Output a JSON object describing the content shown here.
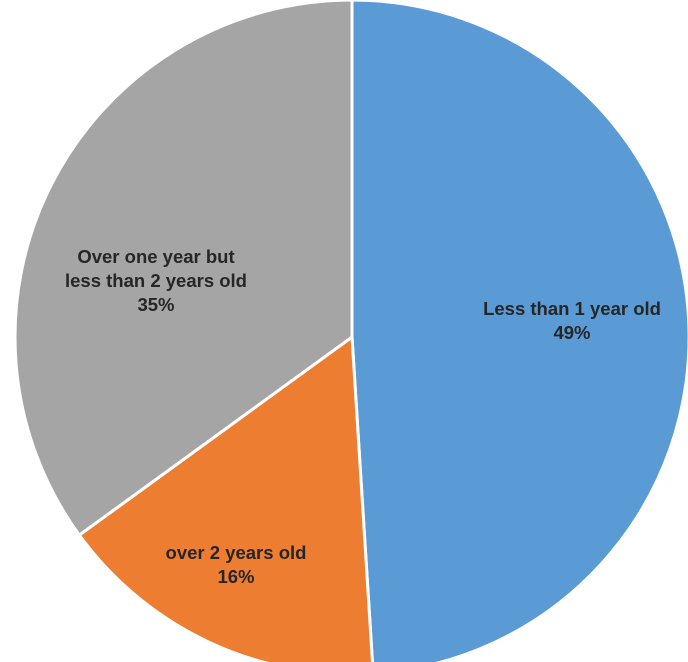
{
  "chart_data": {
    "type": "pie",
    "title": "",
    "start_angle_deg": 0,
    "direction": "clockwise",
    "legend": "none",
    "slices": [
      {
        "name": "less-than-1-year",
        "label_lines": [
          "Less than 1 year old"
        ],
        "value": 49,
        "value_label": "49%",
        "color": "#5B9BD5"
      },
      {
        "name": "over-2-years",
        "label_lines": [
          "over 2 years old"
        ],
        "value": 16,
        "value_label": "16%",
        "color": "#ED7D31"
      },
      {
        "name": "one-to-2-years",
        "label_lines": [
          "Over one year but",
          "less than 2 years old"
        ],
        "value": 35,
        "value_label": "35%",
        "color": "#A5A5A5"
      }
    ]
  }
}
